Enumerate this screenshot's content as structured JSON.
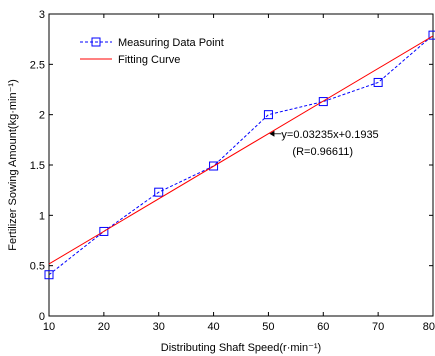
{
  "chart_data": {
    "type": "line",
    "xlabel": "Distributing Shaft Speed(r·min⁻¹)",
    "ylabel": "Fertilizer Sowing Amount(kg·min⁻¹)",
    "xlim": [
      10,
      80
    ],
    "ylim": [
      0,
      3
    ],
    "x_ticks": [
      "10",
      "20",
      "30",
      "40",
      "50",
      "60",
      "70",
      "80"
    ],
    "y_ticks": [
      "0",
      "0.5",
      "1",
      "1.5",
      "2",
      "2.5",
      "3"
    ],
    "grid": false,
    "legend_position": "top-left",
    "series": [
      {
        "name": "Measuring Data Point",
        "style": "dashed-square-markers",
        "color": "#0000ff",
        "x": [
          10,
          20,
          30,
          40,
          50,
          60,
          70,
          80
        ],
        "y": [
          0.41,
          0.84,
          1.23,
          1.49,
          2.0,
          2.13,
          2.32,
          2.79
        ]
      },
      {
        "name": "Fitting Curve",
        "style": "solid",
        "color": "#ff0000",
        "x": [
          10,
          80
        ],
        "y": [
          0.517,
          2.782
        ]
      }
    ],
    "annotations": [
      {
        "text": "y=0.03235x+0.1935",
        "arrow_to": [
          50,
          1.81
        ]
      },
      {
        "text": "(R=0.96611)"
      }
    ]
  }
}
